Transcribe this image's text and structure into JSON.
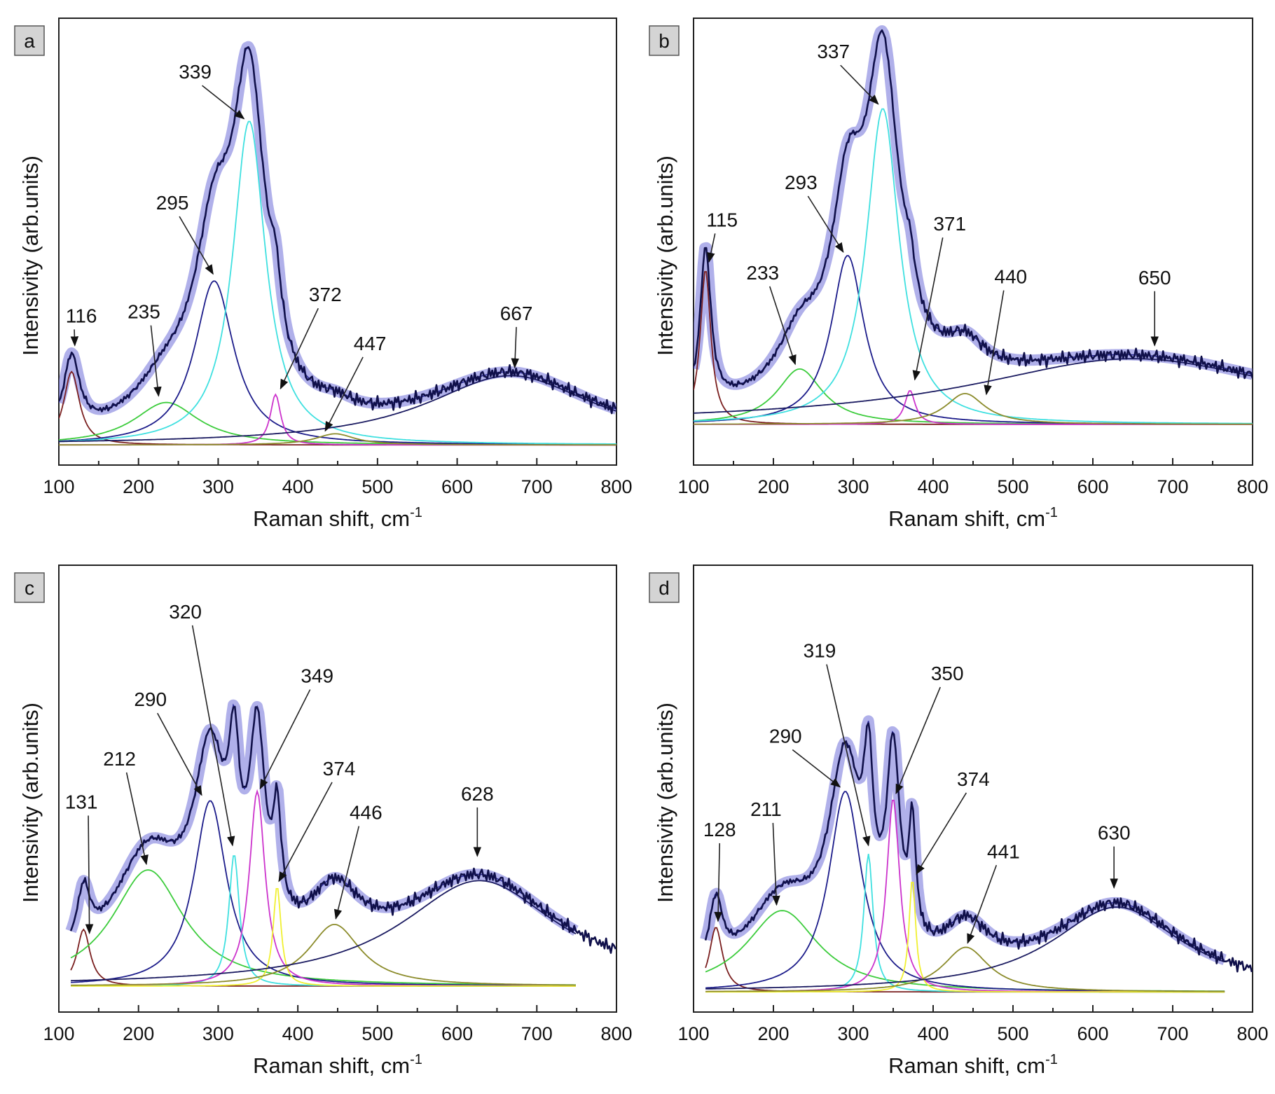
{
  "chart_data": [
    {
      "panel": "a",
      "type": "line",
      "xlabel": "Raman shift, cm",
      "xlabel_sup": "-1",
      "ylabel": "Intensivity (arb.units)",
      "xlim": [
        100,
        800
      ],
      "xticks": [
        100,
        200,
        300,
        400,
        500,
        600,
        700,
        800
      ],
      "ylim": [
        0,
        100
      ],
      "baseline": 4.5,
      "fit_range": [
        100,
        800
      ],
      "data_range": [
        100,
        800
      ],
      "components": [
        {
          "center": 116,
          "height": 16.4,
          "hwhm": 12,
          "color": "#7a1f1f"
        },
        {
          "center": 235,
          "height": 9.5,
          "hwhm": 50,
          "color": "#3ccc3c"
        },
        {
          "center": 295,
          "height": 36.7,
          "hwhm": 30,
          "color": "#1c1c8a"
        },
        {
          "center": 339,
          "height": 72.5,
          "hwhm": 25,
          "color": "#3fe0e0"
        },
        {
          "center": 372,
          "height": 11.3,
          "hwhm": 8,
          "color": "#cc33cc"
        },
        {
          "center": 447,
          "height": 2.5,
          "hwhm": 30,
          "color": "#8b8b2a"
        },
        {
          "center": 667,
          "height": 15.5,
          "hwhm": 130,
          "color": "#1a1a60"
        }
      ],
      "annotations": [
        "116",
        "235",
        "295",
        "339",
        "372",
        "447",
        "667"
      ]
    },
    {
      "panel": "b",
      "type": "line",
      "xlabel": "Ranam shift, cm",
      "xlabel_sup": "-1",
      "ylabel": "Intensivity (arb.units)",
      "xlim": [
        100,
        800
      ],
      "xticks": [
        100,
        200,
        300,
        400,
        500,
        600,
        700,
        800
      ],
      "ylim": [
        0,
        100
      ],
      "baseline": 9.1,
      "fit_range": [
        100,
        800
      ],
      "data_range": [
        100,
        800
      ],
      "components": [
        {
          "center": 115,
          "height": 34.7,
          "hwhm": 8,
          "color": "#7a1f1f"
        },
        {
          "center": 233,
          "height": 12.4,
          "hwhm": 35,
          "color": "#3ccc3c"
        },
        {
          "center": 293,
          "height": 37.8,
          "hwhm": 25,
          "color": "#1c1c8a"
        },
        {
          "center": 337,
          "height": 70.7,
          "hwhm": 25,
          "color": "#3fe0e0"
        },
        {
          "center": 371,
          "height": 7.6,
          "hwhm": 8,
          "color": "#cc33cc"
        },
        {
          "center": 440,
          "height": 6.9,
          "hwhm": 30,
          "color": "#8b8b2a"
        },
        {
          "center": 650,
          "height": 14.7,
          "hwhm": 250,
          "color": "#1a1a60"
        }
      ],
      "annotations": [
        "115",
        "233",
        "293",
        "337",
        "371",
        "440",
        "650"
      ]
    },
    {
      "panel": "c",
      "type": "line",
      "xlabel": "Raman shift, cm",
      "xlabel_sup": "-1",
      "ylabel": "Intensivity (arb.units)",
      "xlim": [
        100,
        800
      ],
      "xticks": [
        100,
        200,
        300,
        400,
        500,
        600,
        700,
        800
      ],
      "ylim": [
        0,
        100
      ],
      "baseline": 5.8,
      "fit_range": [
        115,
        750
      ],
      "data_range": [
        115,
        800
      ],
      "components": [
        {
          "center": 131,
          "height": 12.7,
          "hwhm": 10,
          "color": "#7a1f1f"
        },
        {
          "center": 212,
          "height": 26,
          "hwhm": 55,
          "color": "#3ccc3c"
        },
        {
          "center": 290,
          "height": 41.5,
          "hwhm": 25,
          "color": "#1c1c8a"
        },
        {
          "center": 320,
          "height": 29.6,
          "hwhm": 8,
          "color": "#3fe0e0"
        },
        {
          "center": 349,
          "height": 43.6,
          "hwhm": 12,
          "color": "#cc33cc"
        },
        {
          "center": 374,
          "height": 22.4,
          "hwhm": 6,
          "color": "#f0f030"
        },
        {
          "center": 446,
          "height": 13.8,
          "hwhm": 40,
          "color": "#8b8b2a"
        },
        {
          "center": 628,
          "height": 23.6,
          "hwhm": 120,
          "color": "#1a1a60"
        }
      ],
      "annotations": [
        "131",
        "212",
        "290",
        "320",
        "349",
        "374",
        "446",
        "628"
      ]
    },
    {
      "panel": "d",
      "type": "line",
      "xlabel": "Raman shift, cm",
      "xlabel_sup": "-1",
      "ylabel": "Intensivity (arb.units)",
      "xlim": [
        100,
        800
      ],
      "xticks": [
        100,
        200,
        300,
        400,
        500,
        600,
        700,
        800
      ],
      "ylim": [
        0,
        100
      ],
      "baseline": 4.5,
      "fit_range": [
        115,
        765
      ],
      "data_range": [
        115,
        800
      ],
      "components": [
        {
          "center": 128,
          "height": 14.5,
          "hwhm": 10,
          "color": "#7a1f1f"
        },
        {
          "center": 211,
          "height": 18.2,
          "hwhm": 55,
          "color": "#3ccc3c"
        },
        {
          "center": 290,
          "height": 44.9,
          "hwhm": 25,
          "color": "#1c1c8a"
        },
        {
          "center": 319,
          "height": 30.9,
          "hwhm": 7,
          "color": "#3fe0e0"
        },
        {
          "center": 350,
          "height": 43.3,
          "hwhm": 10,
          "color": "#cc33cc"
        },
        {
          "center": 374,
          "height": 25.5,
          "hwhm": 5,
          "color": "#f0f030"
        },
        {
          "center": 441,
          "height": 10,
          "hwhm": 35,
          "color": "#8b8b2a"
        },
        {
          "center": 630,
          "height": 19,
          "hwhm": 100,
          "color": "#1a1a60"
        }
      ],
      "annotations": [
        "128",
        "211",
        "290",
        "319",
        "350",
        "374",
        "441",
        "630"
      ]
    }
  ],
  "colors": {
    "fit_band": "#6f6fd8",
    "experimental": "#10104a",
    "fit_line": "#2a2a9a"
  }
}
